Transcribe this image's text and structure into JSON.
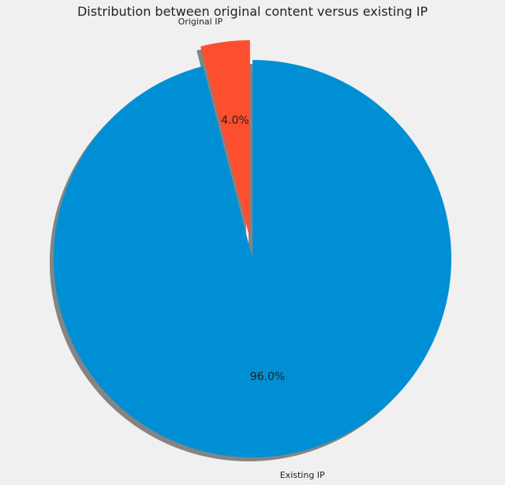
{
  "chart_data": {
    "type": "pie",
    "title": "Distribution between original content versus existing IP",
    "start_angle_deg": 90,
    "direction": "counterclockwise",
    "shadow": true,
    "slices": [
      {
        "label": "Original IP",
        "value": 4.0,
        "pct_label": "4.0%",
        "color": "#fc4f30",
        "exploded": true
      },
      {
        "label": "Existing IP",
        "value": 96.0,
        "pct_label": "96.0%",
        "color": "#008fd5",
        "exploded": false
      }
    ]
  },
  "background_color": "#f0f0f0"
}
